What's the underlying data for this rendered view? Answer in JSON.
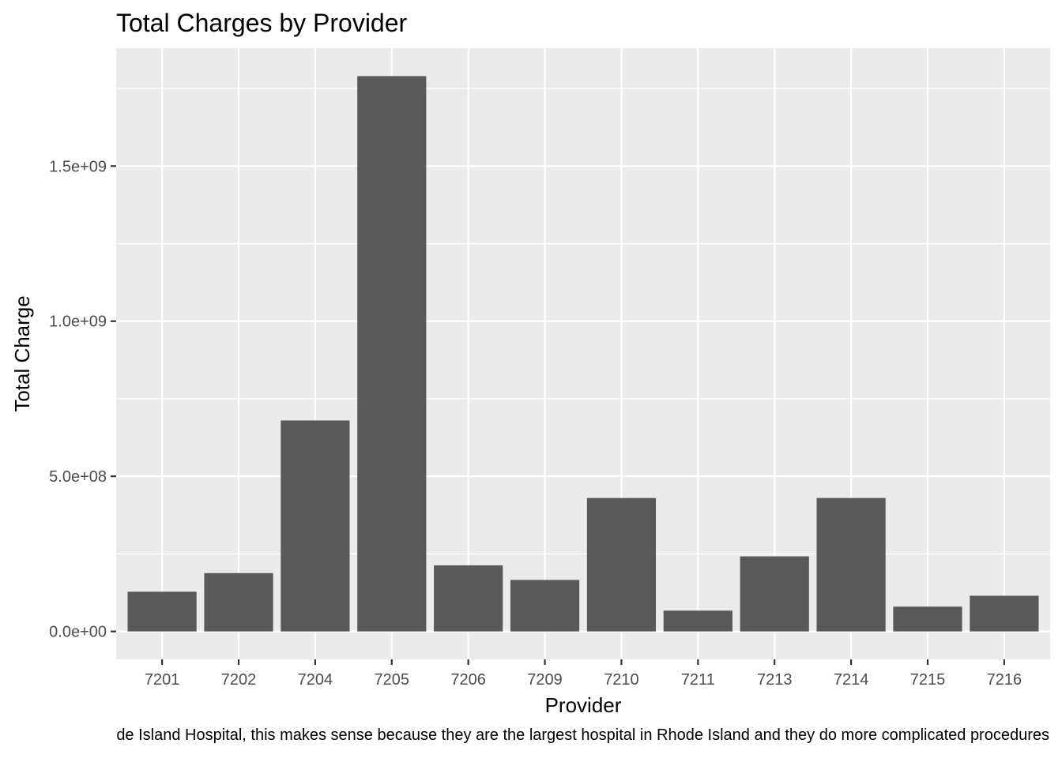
{
  "chart_data": {
    "type": "bar",
    "title": "Total Charges by Provider",
    "xlabel": "Provider",
    "ylabel": "Total Charge",
    "categories": [
      "7201",
      "7202",
      "7204",
      "7205",
      "7206",
      "7209",
      "7210",
      "7211",
      "7213",
      "7214",
      "7215",
      "7216"
    ],
    "values": [
      128000000,
      188000000,
      680000000,
      1790000000,
      213000000,
      166000000,
      430000000,
      67000000,
      242000000,
      430000000,
      80000000,
      115000000
    ],
    "yticks": [
      0,
      500000000,
      1000000000,
      1500000000
    ],
    "ytick_labels": [
      "0.0e+00",
      "5.0e+08",
      "1.0e+09",
      "1.5e+09"
    ],
    "ylim": [
      -90000000,
      1880000000
    ],
    "grid": true,
    "colors": {
      "panel": "#EBEBEB",
      "bar": "#595959",
      "grid": "#FFFFFF",
      "text": "#4D4D4D",
      "title": "#000000"
    }
  },
  "caption": "de Island Hospital, this makes sense because they are the largest hospital in Rhode Island and they do more complicated procedures"
}
